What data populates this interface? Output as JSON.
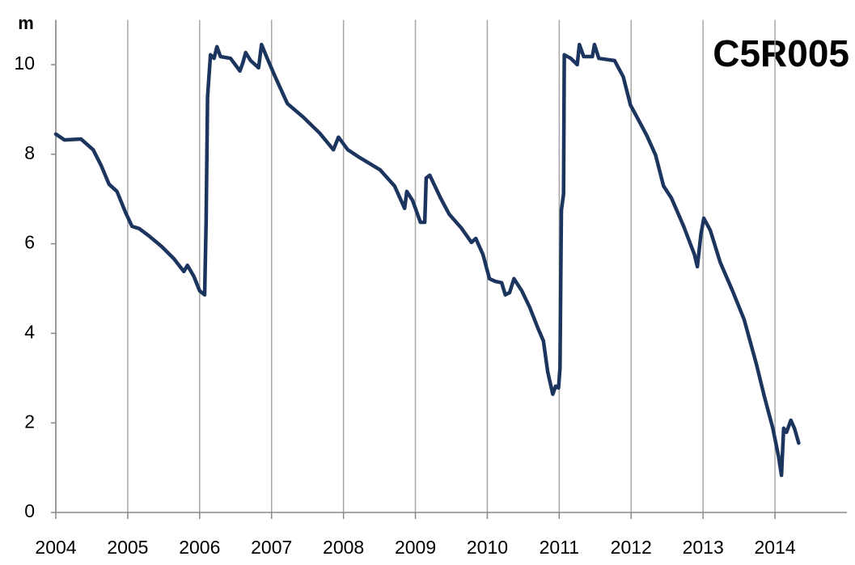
{
  "chart_data": {
    "type": "line",
    "title": "C5R005",
    "y_label": "m",
    "color": "#1c355e",
    "x": [
      2004.0,
      2004.12,
      2004.35,
      2004.52,
      2004.63,
      2004.74,
      2004.85,
      2004.97,
      2005.06,
      2005.16,
      2005.3,
      2005.47,
      2005.64,
      2005.78,
      2005.83,
      2005.92,
      2006.0,
      2006.07,
      2006.09,
      2006.11,
      2006.15,
      2006.2,
      2006.24,
      2006.29,
      2006.43,
      2006.56,
      2006.6,
      2006.64,
      2006.71,
      2006.82,
      2006.86,
      2006.94,
      2007.05,
      2007.22,
      2007.44,
      2007.67,
      2007.86,
      2007.93,
      2008.06,
      2008.23,
      2008.51,
      2008.71,
      2008.85,
      2008.88,
      2008.96,
      2009.07,
      2009.13,
      2009.15,
      2009.2,
      2009.35,
      2009.47,
      2009.64,
      2009.78,
      2009.84,
      2009.94,
      2010.03,
      2010.11,
      2010.2,
      2010.25,
      2010.31,
      2010.37,
      2010.48,
      2010.59,
      2010.7,
      2010.78,
      2010.84,
      2010.91,
      2010.95,
      2010.99,
      2011.01,
      2011.03,
      2011.06,
      2011.07,
      2011.16,
      2011.25,
      2011.28,
      2011.34,
      2011.46,
      2011.49,
      2011.55,
      2011.77,
      2011.89,
      2011.99,
      2012.11,
      2012.22,
      2012.34,
      2012.45,
      2012.56,
      2012.73,
      2012.88,
      2012.92,
      2012.97,
      2013.01,
      2013.1,
      2013.24,
      2013.41,
      2013.57,
      2013.74,
      2013.85,
      2013.97,
      2014.05,
      2014.09,
      2014.12,
      2014.16,
      2014.22,
      2014.27,
      2014.33
    ],
    "values": [
      8.45,
      8.32,
      8.34,
      8.1,
      7.75,
      7.33,
      7.17,
      6.7,
      6.39,
      6.34,
      6.17,
      5.94,
      5.67,
      5.38,
      5.52,
      5.27,
      4.95,
      4.86,
      6.48,
      9.28,
      10.22,
      10.14,
      10.4,
      10.18,
      10.14,
      9.86,
      10.04,
      10.27,
      10.09,
      9.93,
      10.45,
      10.14,
      9.73,
      9.13,
      8.83,
      8.47,
      8.1,
      8.38,
      8.1,
      7.92,
      7.65,
      7.29,
      6.79,
      7.17,
      6.97,
      6.48,
      6.48,
      7.47,
      7.53,
      7.02,
      6.66,
      6.35,
      6.03,
      6.12,
      5.76,
      5.22,
      5.16,
      5.13,
      4.86,
      4.91,
      5.22,
      4.95,
      4.58,
      4.13,
      3.83,
      3.14,
      2.64,
      2.82,
      2.78,
      3.23,
      6.75,
      7.11,
      10.22,
      10.14,
      10.0,
      10.45,
      10.18,
      10.18,
      10.45,
      10.14,
      10.09,
      9.73,
      9.1,
      8.74,
      8.41,
      7.98,
      7.29,
      7.02,
      6.39,
      5.76,
      5.49,
      6.21,
      6.57,
      6.3,
      5.58,
      4.95,
      4.31,
      3.32,
      2.6,
      1.88,
      1.25,
      0.83,
      1.88,
      1.79,
      2.06,
      1.88,
      1.55
    ],
    "xlim": [
      2004,
      2015
    ],
    "xticks": [
      2004,
      2005,
      2006,
      2007,
      2008,
      2009,
      2010,
      2011,
      2012,
      2013,
      2014
    ],
    "ylim": [
      0,
      11
    ],
    "yticks": [
      0,
      2,
      4,
      6,
      8,
      10
    ],
    "grid": true
  }
}
